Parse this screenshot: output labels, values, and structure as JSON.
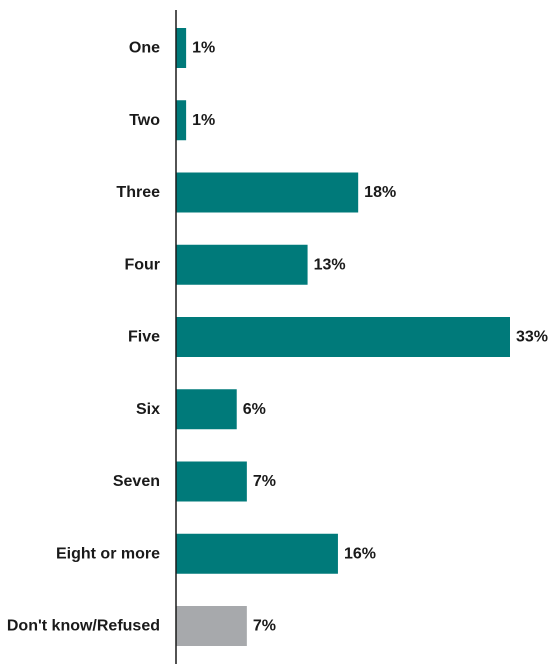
{
  "chart_data": {
    "type": "bar",
    "orientation": "horizontal",
    "categories": [
      "One",
      "Two",
      "Three",
      "Four",
      "Five",
      "Six",
      "Seven",
      "Eight or more",
      "Don't know/Refused"
    ],
    "values": [
      1,
      1,
      18,
      13,
      33,
      6,
      7,
      16,
      7
    ],
    "value_labels": [
      "1%",
      "1%",
      "18%",
      "13%",
      "33%",
      "6%",
      "7%",
      "16%",
      "7%"
    ],
    "unit": "%",
    "xlim": [
      0,
      33
    ],
    "grid": false,
    "legend": "none",
    "colors": {
      "bar": "#007a7a",
      "bar_highlight": "#a7a9ac",
      "axis": "#1a1a1a",
      "text": "#1a1a1a"
    },
    "highlight_categories": [
      "Don't know/Refused"
    ]
  }
}
